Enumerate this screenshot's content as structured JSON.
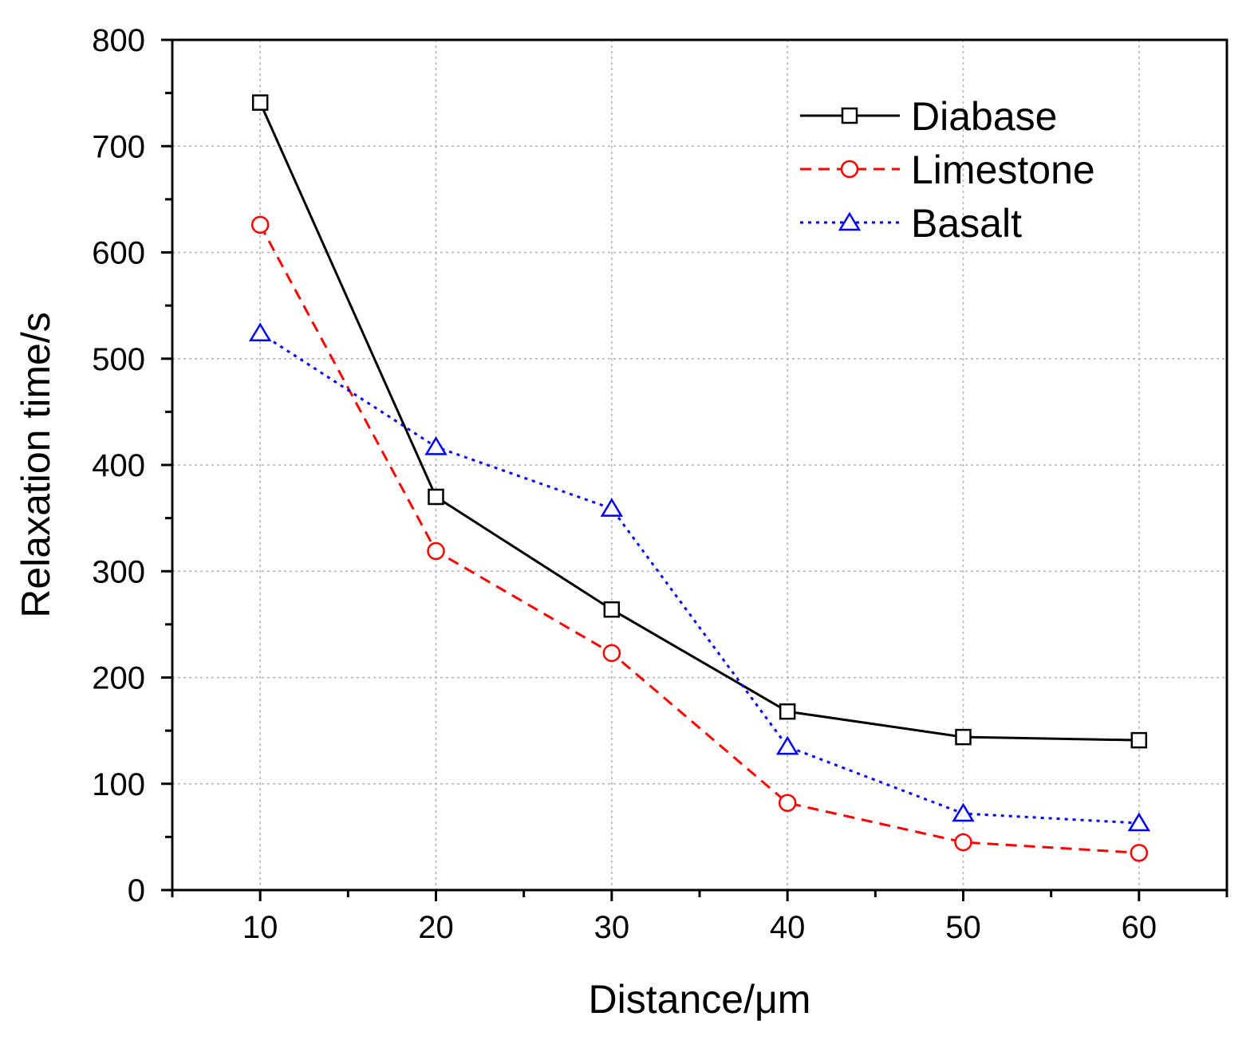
{
  "chart_data": {
    "type": "line",
    "title": "",
    "xlabel": "Distance/μm",
    "ylabel": "Relaxation time/s",
    "x": [
      10,
      20,
      30,
      40,
      50,
      60
    ],
    "xlim": [
      5,
      65
    ],
    "ylim": [
      0,
      800
    ],
    "xticks": [
      10,
      20,
      30,
      40,
      50,
      60
    ],
    "yticks": [
      0,
      100,
      200,
      300,
      400,
      500,
      600,
      700,
      800
    ],
    "grid": true,
    "legend_position": "top-right",
    "series": [
      {
        "name": "Diabase",
        "color": "#000000",
        "line": "solid",
        "marker": "square",
        "values": [
          741,
          370,
          264,
          168,
          144,
          141
        ]
      },
      {
        "name": "Limestone",
        "color": "#ff0000",
        "line": "dashed",
        "marker": "circle",
        "values": [
          626,
          319,
          223,
          82,
          45,
          35
        ]
      },
      {
        "name": "Basalt",
        "color": "#0000ff",
        "line": "dotted",
        "marker": "triangle",
        "values": [
          524,
          417,
          359,
          135,
          72,
          63
        ]
      }
    ]
  }
}
